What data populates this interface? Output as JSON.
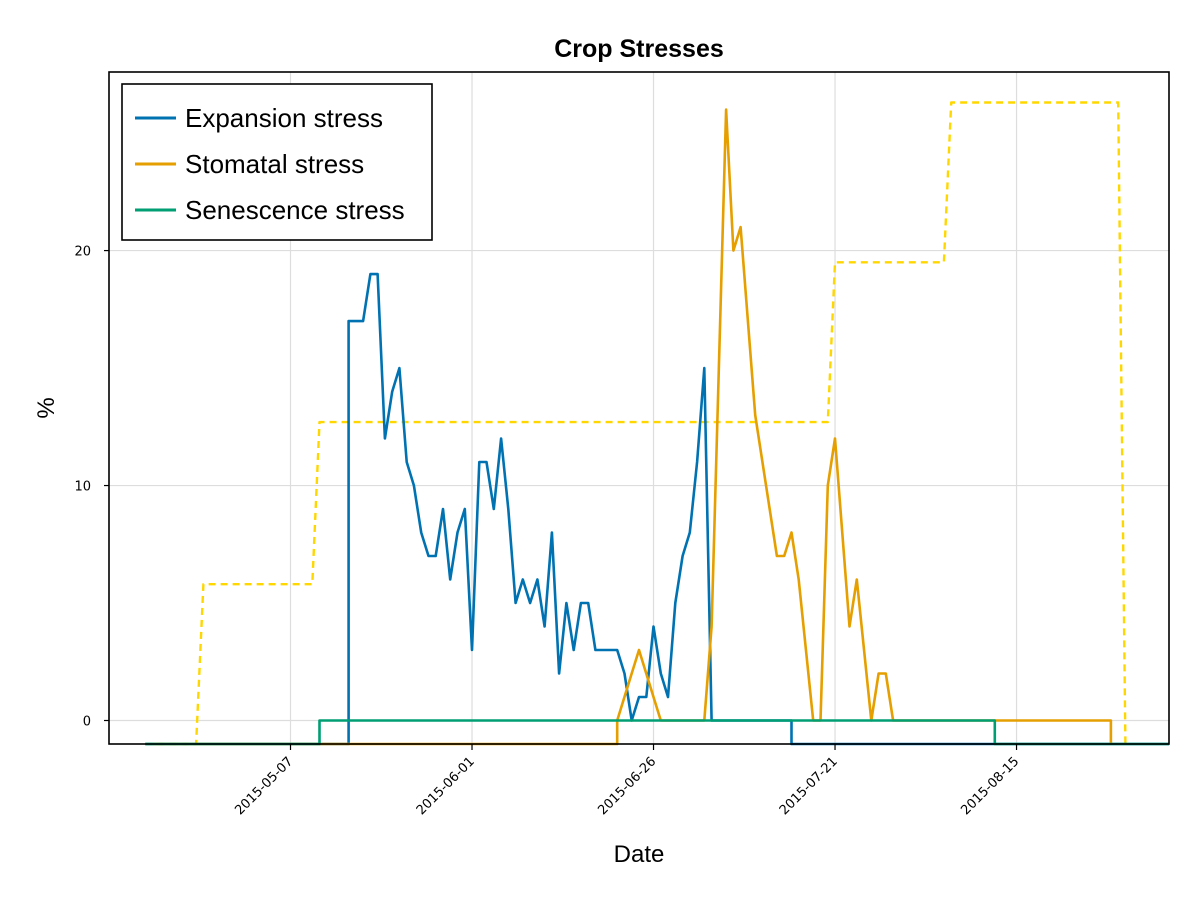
{
  "chart_data": {
    "type": "line",
    "title": "Crop Stresses",
    "xlabel": "Date",
    "ylabel": "%",
    "grid": true,
    "legend_position": "top-left",
    "x_ticks": [
      "2015-05-07",
      "2015-06-01",
      "2015-06-26",
      "2015-07-21",
      "2015-08-15"
    ],
    "y_ticks": [
      0,
      10,
      20
    ],
    "xlim": [
      "2015-04-12",
      "2015-09-05"
    ],
    "ylim": [
      -1,
      27.6
    ],
    "series": [
      {
        "name": "Expansion stress",
        "color": "#0072b2",
        "style": "solid",
        "points": [
          [
            "2015-04-17",
            -1
          ],
          [
            "2015-05-15",
            -1
          ],
          [
            "2015-05-15",
            17
          ],
          [
            "2015-05-16",
            17
          ],
          [
            "2015-05-17",
            17
          ],
          [
            "2015-05-18",
            19
          ],
          [
            "2015-05-19",
            19
          ],
          [
            "2015-05-20",
            12
          ],
          [
            "2015-05-21",
            14
          ],
          [
            "2015-05-22",
            15
          ],
          [
            "2015-05-23",
            11
          ],
          [
            "2015-05-24",
            10
          ],
          [
            "2015-05-25",
            8
          ],
          [
            "2015-05-26",
            7
          ],
          [
            "2015-05-27",
            7
          ],
          [
            "2015-05-28",
            9
          ],
          [
            "2015-05-29",
            6
          ],
          [
            "2015-05-30",
            8
          ],
          [
            "2015-05-31",
            9
          ],
          [
            "2015-06-01",
            3
          ],
          [
            "2015-06-02",
            11
          ],
          [
            "2015-06-03",
            11
          ],
          [
            "2015-06-04",
            9
          ],
          [
            "2015-06-05",
            12
          ],
          [
            "2015-06-06",
            9
          ],
          [
            "2015-06-07",
            5
          ],
          [
            "2015-06-08",
            6
          ],
          [
            "2015-06-09",
            5
          ],
          [
            "2015-06-10",
            6
          ],
          [
            "2015-06-11",
            4
          ],
          [
            "2015-06-12",
            8
          ],
          [
            "2015-06-13",
            2
          ],
          [
            "2015-06-14",
            5
          ],
          [
            "2015-06-15",
            3
          ],
          [
            "2015-06-16",
            5
          ],
          [
            "2015-06-17",
            5
          ],
          [
            "2015-06-18",
            3
          ],
          [
            "2015-06-19",
            3
          ],
          [
            "2015-06-20",
            3
          ],
          [
            "2015-06-21",
            3
          ],
          [
            "2015-06-22",
            2
          ],
          [
            "2015-06-23",
            0
          ],
          [
            "2015-06-24",
            1
          ],
          [
            "2015-06-25",
            1
          ],
          [
            "2015-06-26",
            4
          ],
          [
            "2015-06-27",
            2
          ],
          [
            "2015-06-28",
            1
          ],
          [
            "2015-06-29",
            5
          ],
          [
            "2015-06-30",
            7
          ],
          [
            "2015-07-01",
            8
          ],
          [
            "2015-07-02",
            11
          ],
          [
            "2015-07-03",
            15
          ],
          [
            "2015-07-04",
            0
          ],
          [
            "2015-07-05",
            0
          ],
          [
            "2015-07-15",
            0
          ],
          [
            "2015-07-15",
            -1
          ],
          [
            "2015-09-05",
            -1
          ]
        ]
      },
      {
        "name": "Stomatal stress",
        "color": "#e69f00",
        "style": "solid",
        "points": [
          [
            "2015-04-18",
            -1
          ],
          [
            "2015-04-22",
            -1
          ],
          [
            "2015-04-22",
            -1
          ],
          [
            "2015-06-21",
            -1
          ],
          [
            "2015-06-21",
            0
          ],
          [
            "2015-06-23",
            2
          ],
          [
            "2015-06-24",
            3
          ],
          [
            "2015-06-26",
            1
          ],
          [
            "2015-06-27",
            0
          ],
          [
            "2015-07-03",
            0
          ],
          [
            "2015-07-04",
            4
          ],
          [
            "2015-07-06",
            26
          ],
          [
            "2015-07-07",
            20
          ],
          [
            "2015-07-08",
            21
          ],
          [
            "2015-07-10",
            13
          ],
          [
            "2015-07-13",
            7
          ],
          [
            "2015-07-14",
            7
          ],
          [
            "2015-07-15",
            8
          ],
          [
            "2015-07-16",
            6
          ],
          [
            "2015-07-18",
            0
          ],
          [
            "2015-07-19",
            0
          ],
          [
            "2015-07-20",
            10
          ],
          [
            "2015-07-21",
            12
          ],
          [
            "2015-07-23",
            4
          ],
          [
            "2015-07-24",
            6
          ],
          [
            "2015-07-26",
            0
          ],
          [
            "2015-07-27",
            2
          ],
          [
            "2015-07-28",
            2
          ],
          [
            "2015-07-29",
            0
          ],
          [
            "2015-08-28",
            0
          ],
          [
            "2015-08-28",
            -1
          ]
        ]
      },
      {
        "name": "Senescence stress",
        "color": "#009e73",
        "style": "solid",
        "points": [
          [
            "2015-04-17",
            -1
          ],
          [
            "2015-05-11",
            -1
          ],
          [
            "2015-05-11",
            0
          ],
          [
            "2015-08-12",
            0
          ],
          [
            "2015-08-12",
            -1
          ],
          [
            "2015-09-05",
            -1
          ]
        ]
      },
      {
        "name": "",
        "color": "#ffd700",
        "style": "dashed",
        "points": [
          [
            "2015-04-17",
            -1
          ],
          [
            "2015-04-24",
            -1
          ],
          [
            "2015-04-25",
            5.8
          ],
          [
            "2015-05-10",
            5.8
          ],
          [
            "2015-05-11",
            12.7
          ],
          [
            "2015-07-20",
            12.7
          ],
          [
            "2015-07-21",
            19.5
          ],
          [
            "2015-08-05",
            19.5
          ],
          [
            "2015-08-06",
            26.3
          ],
          [
            "2015-08-29",
            26.3
          ],
          [
            "2015-08-30",
            -1
          ]
        ]
      }
    ]
  }
}
